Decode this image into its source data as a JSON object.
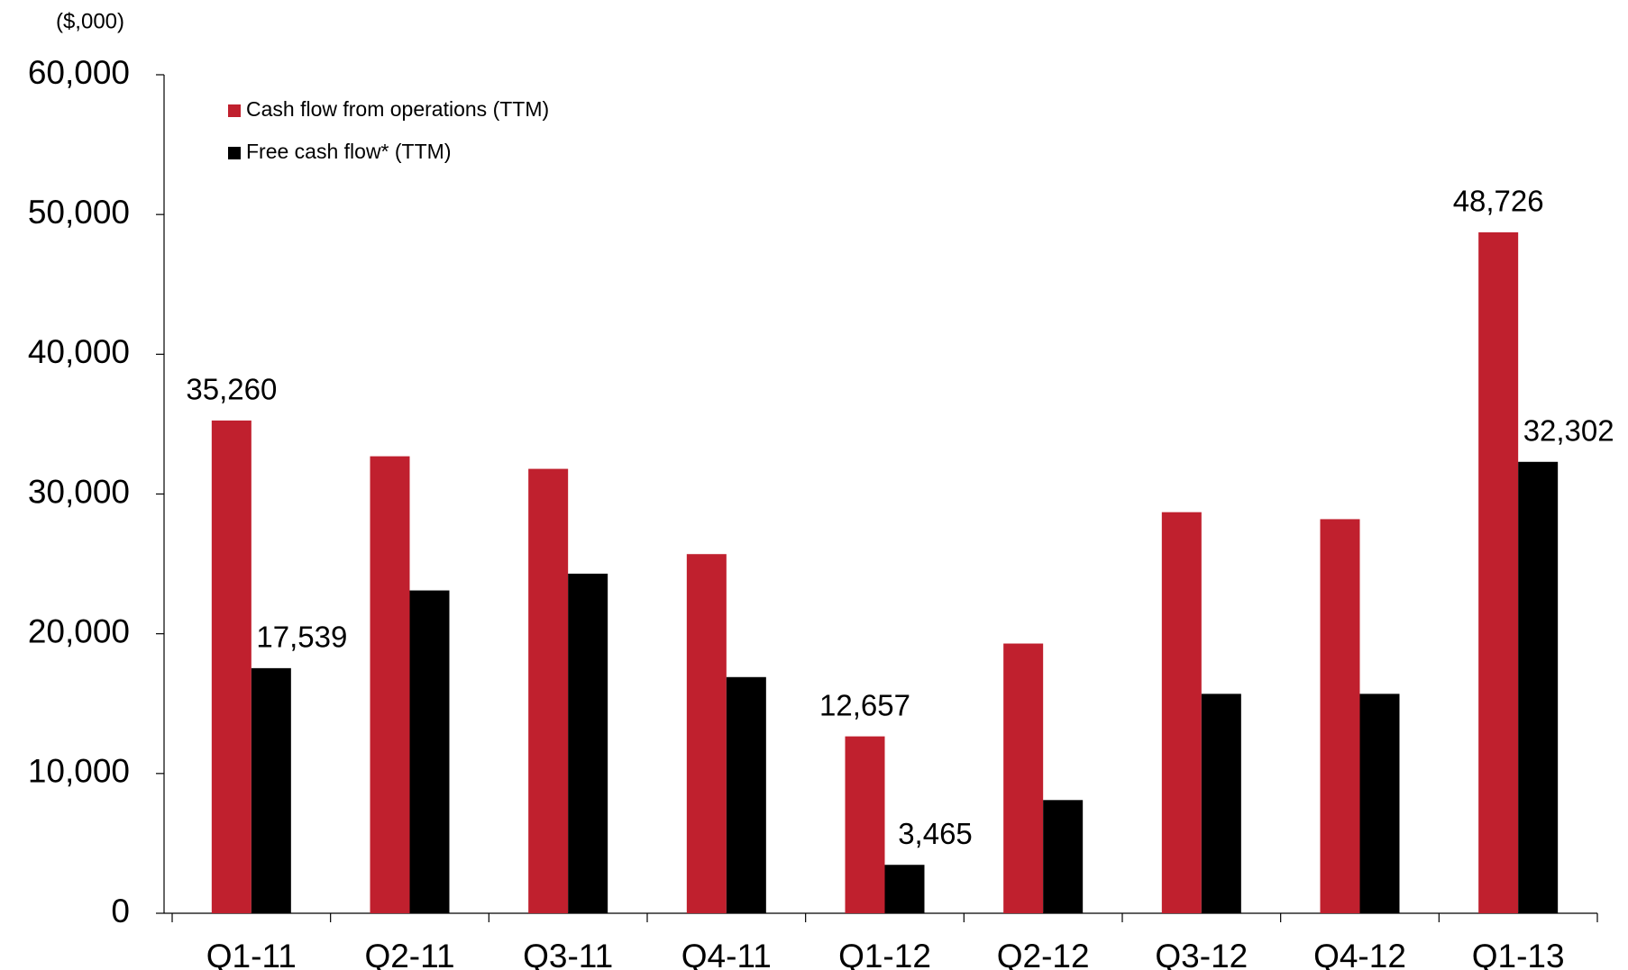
{
  "chart_data": {
    "type": "bar",
    "unit_label": "($,000)",
    "categories": [
      "Q1-11",
      "Q2-11",
      "Q3-11",
      "Q4-11",
      "Q1-12",
      "Q2-12",
      "Q3-12",
      "Q4-12",
      "Q1-13"
    ],
    "series": [
      {
        "name": "Cash flow from operations (TTM)",
        "color": "#c0202e",
        "values": [
          35260,
          32700,
          31800,
          25700,
          12657,
          19300,
          28700,
          28200,
          48726
        ],
        "value_labels": [
          "35,260",
          null,
          null,
          null,
          "12,657",
          null,
          null,
          null,
          "48,726"
        ]
      },
      {
        "name": "Free cash flow* (TTM)",
        "color": "#000000",
        "values": [
          17539,
          23100,
          24300,
          16900,
          3465,
          8100,
          15700,
          15700,
          32302
        ],
        "value_labels": [
          "17,539",
          null,
          null,
          null,
          "3,465",
          null,
          null,
          null,
          "32,302"
        ]
      }
    ],
    "ylim": [
      0,
      60000
    ],
    "yticks": [
      0,
      {
        "value": 10000,
        "label": "10,000"
      },
      {
        "value": 20000,
        "label": "20,000"
      },
      {
        "value": 30000,
        "label": "30,000"
      },
      {
        "value": 40000,
        "label": "40,000"
      },
      {
        "value": 50000,
        "label": "50,000"
      },
      {
        "value": 60000,
        "label": "60,000"
      }
    ],
    "grid": false,
    "legend": "upper left"
  }
}
